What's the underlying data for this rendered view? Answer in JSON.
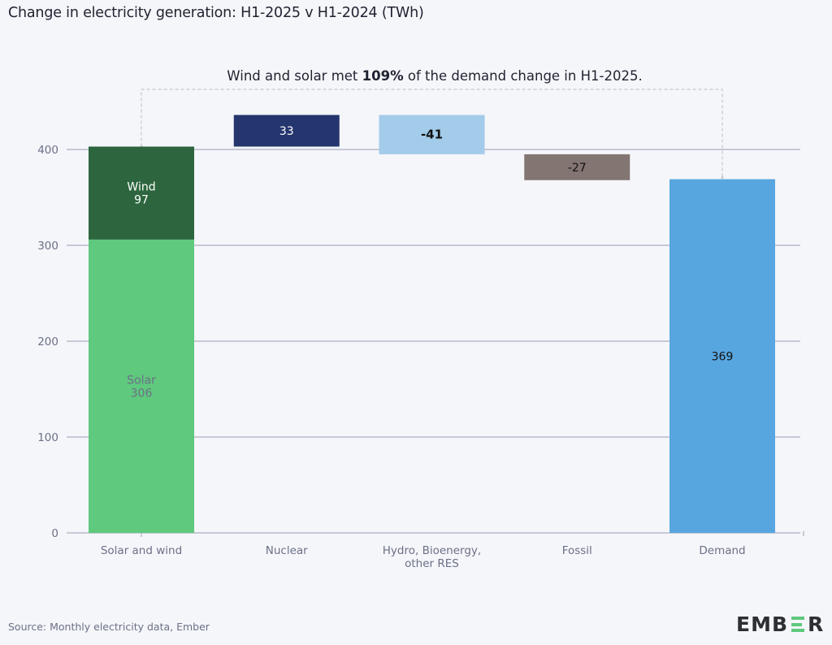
{
  "title": "Change in electricity generation: H1-2025 v H1-2024 (TWh)",
  "source": "Source: Monthly electricity data, Ember",
  "logo": {
    "text_left": "EMB",
    "text_right": "R",
    "icon": "ember-logo-e-bars"
  },
  "chart_data": {
    "type": "waterfall",
    "title": "Change in electricity generation: H1-2025 v H1-2024 (TWh)",
    "xlabel": "",
    "ylabel": "",
    "ylim": [
      0,
      450
    ],
    "yticks": [
      0,
      100,
      200,
      300,
      400
    ],
    "grid": true,
    "categories": [
      "Solar and wind",
      "Nuclear",
      "Hydro, Bioenergy, other RES",
      "Fossil",
      "Demand"
    ],
    "category_label_lines": [
      [
        "Solar and wind"
      ],
      [
        "Nuclear"
      ],
      [
        "Hydro, Bioenergy,",
        "other RES"
      ],
      [
        "Fossil"
      ],
      [
        "Demand"
      ]
    ],
    "bars": [
      {
        "category": "Solar and wind",
        "kind": "stack",
        "segments": [
          {
            "name": "Solar",
            "value": 306,
            "label": "Solar\n306",
            "label_lines": [
              "Solar",
              "306"
            ],
            "color": "#5fc97e",
            "label_color": "#6b7086"
          },
          {
            "name": "Wind",
            "value": 97,
            "label": "Wind\n97",
            "label_lines": [
              "Wind",
              "97"
            ],
            "color": "#2d663e",
            "label_color": "#ffffff"
          }
        ]
      },
      {
        "category": "Nuclear",
        "kind": "delta",
        "base": 403,
        "value": 33,
        "label": "33",
        "color": "#25356e",
        "label_color": "#ffffff",
        "bold": false
      },
      {
        "category": "Hydro, Bioenergy, other RES",
        "kind": "delta",
        "base": 436,
        "value": -41,
        "label": "-41",
        "color": "#a3cbea",
        "label_color": "#111111",
        "bold": true
      },
      {
        "category": "Fossil",
        "kind": "delta",
        "base": 395,
        "value": -27,
        "label": "-27",
        "color": "#837571",
        "label_color": "#111111",
        "bold": false
      },
      {
        "category": "Demand",
        "kind": "total",
        "base": 0,
        "value": 369,
        "label": "369",
        "color": "#58a6e0",
        "label_color": "#111111",
        "bold": false
      }
    ],
    "annotation": {
      "text_before": "Wind and solar met ",
      "text_bold": "109%",
      "text_after": " of the demand change in H1-2025.",
      "connects": [
        "Solar and wind",
        "Demand"
      ],
      "style": "dashed-bracket"
    },
    "colors": {
      "grid": "#b7bccb",
      "axis_text": "#6b7086",
      "bracket": "#c3c6d1",
      "background": "#f5f6fa"
    }
  }
}
